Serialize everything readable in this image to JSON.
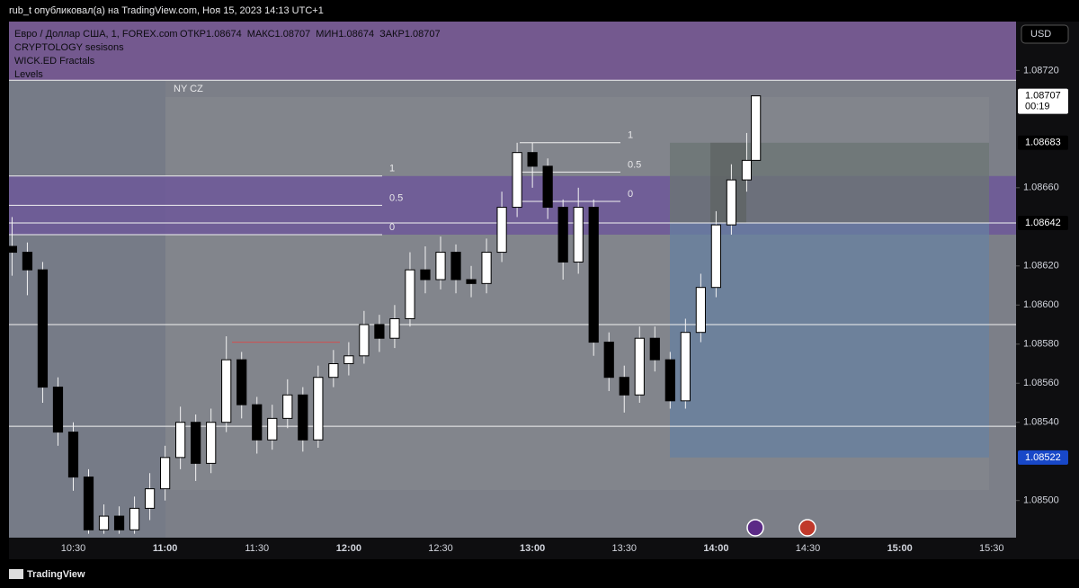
{
  "header": {
    "text": "rub_t опубликовал(а) на TradingView.com, Ноя 15, 2023 14:13 UTC+1"
  },
  "footer": {
    "brand": "TradingView"
  },
  "chart_data": {
    "type": "candlestick",
    "title": "Евро / Доллар США, 1, FOREX.com",
    "ohlc_legend": [
      {
        "label": "ОТКР",
        "value": 1.08674
      },
      {
        "label": "МАКС",
        "value": 1.08707
      },
      {
        "label": "МИН",
        "value": 1.08674
      },
      {
        "label": "ЗАКР",
        "value": 1.08707
      }
    ],
    "indicators": [
      "CRYPTOLOGY sesisons",
      "WICK.ED Fractals",
      "Levels"
    ],
    "currency": "USD",
    "session_label": "NY CZ",
    "x": [
      "10:10",
      "10:15",
      "10:20",
      "10:25",
      "10:30",
      "10:35",
      "10:40",
      "10:45",
      "10:50",
      "10:55",
      "11:00",
      "11:05",
      "11:10",
      "11:15",
      "11:20",
      "11:25",
      "11:30",
      "11:35",
      "11:40",
      "11:45",
      "11:50",
      "11:55",
      "12:00",
      "12:05",
      "12:10",
      "12:15",
      "12:20",
      "12:25",
      "12:30",
      "12:35",
      "12:40",
      "12:45",
      "12:50",
      "12:55",
      "13:00",
      "13:05",
      "13:10",
      "13:15",
      "13:20",
      "13:25",
      "13:30",
      "13:35",
      "13:40",
      "13:45",
      "13:50",
      "13:55",
      "14:00",
      "14:05",
      "14:10",
      "14:13"
    ],
    "open": [
      1.0863,
      1.08627,
      1.08618,
      1.08558,
      1.08535,
      1.08512,
      1.08485,
      1.08492,
      1.08485,
      1.08496,
      1.08506,
      1.08522,
      1.0854,
      1.08519,
      1.0854,
      1.08572,
      1.08549,
      1.08531,
      1.08542,
      1.08554,
      1.08531,
      1.08563,
      1.0857,
      1.08574,
      1.0859,
      1.08583,
      1.08593,
      1.08618,
      1.08613,
      1.08627,
      1.08613,
      1.08611,
      1.08627,
      1.0865,
      1.08678,
      1.08671,
      1.0865,
      1.08622,
      1.0865,
      1.08581,
      1.08563,
      1.08554,
      1.08583,
      1.08572,
      1.08551,
      1.08586,
      1.08609,
      1.08641,
      1.08664,
      1.08674
    ],
    "high": [
      1.08645,
      1.08632,
      1.08622,
      1.08563,
      1.0854,
      1.08516,
      1.08498,
      1.08497,
      1.08502,
      1.08514,
      1.08528,
      1.08548,
      1.08544,
      1.08547,
      1.08584,
      1.08576,
      1.08553,
      1.08549,
      1.08562,
      1.08558,
      1.08569,
      1.08577,
      1.08581,
      1.08597,
      1.08595,
      1.086,
      1.08627,
      1.0863,
      1.08635,
      1.08631,
      1.0862,
      1.08634,
      1.08658,
      1.08683,
      1.08683,
      1.08675,
      1.08654,
      1.0866,
      1.08654,
      1.08586,
      1.08569,
      1.08589,
      1.08589,
      1.08576,
      1.08593,
      1.08616,
      1.08648,
      1.08672,
      1.08688,
      1.08707
    ],
    "low": [
      1.08615,
      1.08605,
      1.0855,
      1.08528,
      1.08505,
      1.08483,
      1.08483,
      1.08483,
      1.08483,
      1.0849,
      1.085,
      1.08516,
      1.0851,
      1.08514,
      1.08535,
      1.08542,
      1.08524,
      1.08526,
      1.08537,
      1.08525,
      1.08527,
      1.08558,
      1.08564,
      1.0857,
      1.08576,
      1.08578,
      1.08589,
      1.08606,
      1.08608,
      1.08606,
      1.08604,
      1.08606,
      1.08622,
      1.08645,
      1.0866,
      1.08644,
      1.08613,
      1.08616,
      1.08574,
      1.08556,
      1.08545,
      1.0855,
      1.08566,
      1.08547,
      1.08547,
      1.08581,
      1.08604,
      1.08636,
      1.08658,
      1.08674
    ],
    "close": [
      1.08627,
      1.08618,
      1.08558,
      1.08535,
      1.08512,
      1.08485,
      1.08492,
      1.08485,
      1.08496,
      1.08506,
      1.08522,
      1.0854,
      1.08519,
      1.0854,
      1.08572,
      1.08549,
      1.08531,
      1.08542,
      1.08554,
      1.08531,
      1.08563,
      1.0857,
      1.08574,
      1.0859,
      1.08583,
      1.08593,
      1.08618,
      1.08613,
      1.08627,
      1.08613,
      1.08611,
      1.08627,
      1.0865,
      1.08678,
      1.08671,
      1.0865,
      1.08622,
      1.0865,
      1.08581,
      1.08563,
      1.08554,
      1.08583,
      1.08572,
      1.08551,
      1.08586,
      1.08609,
      1.08641,
      1.08664,
      1.08674,
      1.08707
    ],
    "xlim": [
      "10:09",
      "15:38"
    ],
    "xticks": [
      "10:30",
      "11:00",
      "11:30",
      "12:00",
      "12:30",
      "13:00",
      "13:30",
      "14:00",
      "14:30",
      "15:00",
      "15:30"
    ],
    "ylim": [
      1.08481,
      1.08745
    ],
    "yticks": [
      {
        "value": 1.0872,
        "label": "1.08720"
      },
      {
        "value": 1.0866,
        "label": "1.08660"
      },
      {
        "value": 1.0862,
        "label": "1.08620"
      },
      {
        "value": 1.086,
        "label": "1.08600"
      },
      {
        "value": 1.0858,
        "label": "1.08580"
      },
      {
        "value": 1.0856,
        "label": "1.08560"
      },
      {
        "value": 1.0854,
        "label": "1.08540"
      },
      {
        "value": 1.085,
        "label": "1.08500"
      }
    ],
    "last_price": {
      "value": 1.08707,
      "countdown": "00:19"
    },
    "position": {
      "target": 1.08683,
      "entry": 1.08642,
      "stop": 1.08522
    },
    "levels": [
      1.08715,
      1.08642,
      1.0859,
      1.08538
    ],
    "fib_left": {
      "labels": [
        "1",
        "0.5",
        "0"
      ],
      "prices": [
        1.08666,
        1.08651,
        1.08636
      ]
    },
    "fib_right": {
      "labels": [
        "1",
        "0.5",
        "0"
      ],
      "prices": [
        1.08683,
        1.08668,
        1.08653
      ]
    },
    "resistance": 1.08581
  }
}
